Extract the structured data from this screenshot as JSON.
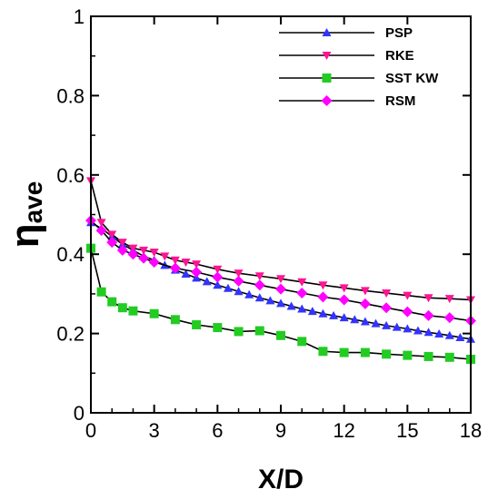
{
  "chart_data": {
    "type": "line",
    "xlabel": "X/D",
    "ylabel": {
      "symbol": "η",
      "subscript": "ave"
    },
    "xlim": [
      0,
      18
    ],
    "ylim": [
      0,
      1
    ],
    "xticks": [
      0,
      3,
      6,
      9,
      12,
      15,
      18
    ],
    "yticks": [
      0,
      0.2,
      0.4,
      0.6,
      0.8,
      1
    ],
    "ytick_labels": [
      "0",
      "0.2",
      "0.4",
      "0.6",
      "0.8",
      "1"
    ],
    "grid": false,
    "legend_position": "top-right",
    "series": [
      {
        "name": "PSP",
        "marker": "triangle-up",
        "color": "#3333ff",
        "x": [
          0,
          0.5,
          1,
          1.5,
          2,
          2.5,
          3,
          3.5,
          4,
          4.5,
          5,
          5.5,
          6,
          6.5,
          7,
          7.5,
          8,
          8.5,
          9,
          9.5,
          10,
          10.5,
          11,
          11.5,
          12,
          12.5,
          13,
          13.5,
          14,
          14.5,
          15,
          15.5,
          16,
          16.5,
          17,
          17.5,
          18
        ],
        "y": [
          0.48,
          0.465,
          0.445,
          0.425,
          0.41,
          0.395,
          0.385,
          0.372,
          0.36,
          0.35,
          0.34,
          0.331,
          0.322,
          0.314,
          0.306,
          0.298,
          0.29,
          0.283,
          0.276,
          0.269,
          0.262,
          0.256,
          0.25,
          0.245,
          0.24,
          0.235,
          0.23,
          0.225,
          0.22,
          0.216,
          0.212,
          0.207,
          0.203,
          0.199,
          0.195,
          0.19,
          0.186
        ]
      },
      {
        "name": "RKE",
        "marker": "triangle-down",
        "color": "#ff1493",
        "x": [
          0,
          0.5,
          1,
          1.5,
          2,
          2.5,
          3,
          3.5,
          4,
          4.5,
          5,
          6,
          7,
          8,
          9,
          10,
          11,
          12,
          13,
          14,
          15,
          16,
          17,
          18
        ],
        "y": [
          0.585,
          0.48,
          0.45,
          0.43,
          0.415,
          0.41,
          0.405,
          0.395,
          0.385,
          0.38,
          0.375,
          0.362,
          0.352,
          0.345,
          0.338,
          0.33,
          0.322,
          0.315,
          0.308,
          0.302,
          0.296,
          0.29,
          0.288,
          0.285
        ]
      },
      {
        "name": "SST KW",
        "marker": "square",
        "color": "#22cc22",
        "x": [
          0,
          0.5,
          1,
          1.5,
          2,
          3,
          4,
          5,
          6,
          7,
          8,
          9,
          10,
          11,
          12,
          13,
          14,
          15,
          16,
          17,
          18
        ],
        "y": [
          0.415,
          0.305,
          0.28,
          0.265,
          0.257,
          0.25,
          0.235,
          0.222,
          0.215,
          0.205,
          0.207,
          0.195,
          0.18,
          0.155,
          0.152,
          0.152,
          0.148,
          0.145,
          0.142,
          0.14,
          0.135
        ]
      },
      {
        "name": "RSM",
        "marker": "diamond",
        "color": "#ff00ff",
        "x": [
          0,
          0.5,
          1,
          1.5,
          2,
          2.5,
          3,
          4,
          5,
          6,
          7,
          8,
          9,
          10,
          11,
          12,
          13,
          14,
          15,
          16,
          17,
          18
        ],
        "y": [
          0.485,
          0.46,
          0.43,
          0.41,
          0.4,
          0.39,
          0.38,
          0.365,
          0.355,
          0.342,
          0.332,
          0.322,
          0.312,
          0.302,
          0.292,
          0.285,
          0.275,
          0.265,
          0.255,
          0.245,
          0.24,
          0.232
        ]
      }
    ]
  }
}
